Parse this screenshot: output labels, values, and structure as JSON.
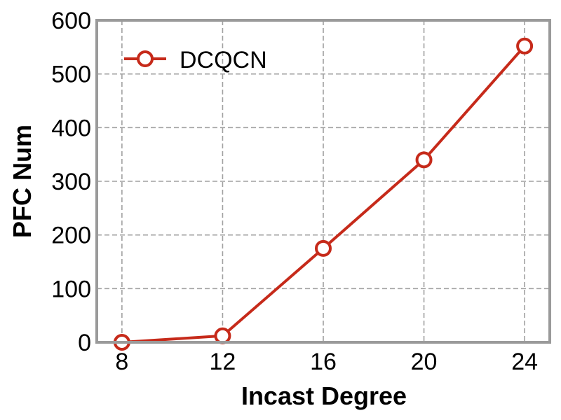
{
  "chart_data": {
    "type": "line",
    "xlabel": "Incast Degree",
    "ylabel": "PFC Num",
    "x": [
      8,
      12,
      16,
      20,
      24
    ],
    "xticks": [
      "8",
      "12",
      "16",
      "20",
      "24"
    ],
    "xlim": [
      7,
      25
    ],
    "ylim": [
      0,
      600
    ],
    "yticks": [
      "0",
      "100",
      "200",
      "300",
      "400",
      "500",
      "600"
    ],
    "grid": true,
    "legend_position": "top-left",
    "series": [
      {
        "name": "DCQCN",
        "values": [
          0,
          12,
          175,
          340,
          552
        ],
        "color": "#c62a1a",
        "marker": "open-circle"
      }
    ]
  }
}
